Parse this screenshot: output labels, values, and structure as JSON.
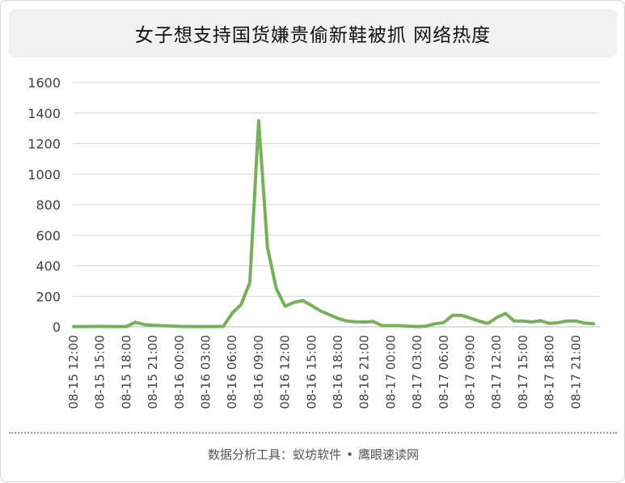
{
  "title": "女子想支持国货嫌贵偷新鞋被抓  网络热度",
  "footer": {
    "prefix": "数据分析工具：",
    "tool1": "蚁坊软件",
    "separator": "•",
    "tool2": "鹰眼速读网"
  },
  "chart_data": {
    "type": "line",
    "title": "女子想支持国货嫌贵偷新鞋被抓  网络热度",
    "xlabel": "",
    "ylabel": "",
    "ylim": [
      0,
      1600
    ],
    "yticks": [
      0,
      200,
      400,
      600,
      800,
      1000,
      1200,
      1400,
      1600
    ],
    "grid": true,
    "legend": "none",
    "line_color": "#77b05a",
    "x_tick_labels": [
      "08-15 12:00",
      "08-15 15:00",
      "08-15 18:00",
      "08-15 21:00",
      "08-16 00:00",
      "08-16 03:00",
      "08-16 06:00",
      "08-16 09:00",
      "08-16 12:00",
      "08-16 15:00",
      "08-16 18:00",
      "08-16 21:00",
      "08-17 00:00",
      "08-17 03:00",
      "08-17 06:00",
      "08-17 09:00",
      "08-17 12:00",
      "08-17 15:00",
      "08-17 18:00",
      "08-17 21:00"
    ],
    "x": [
      "08-15 12:00",
      "08-15 13:00",
      "08-15 14:00",
      "08-15 15:00",
      "08-15 16:00",
      "08-15 17:00",
      "08-15 18:00",
      "08-15 19:00",
      "08-15 20:00",
      "08-15 21:00",
      "08-15 22:00",
      "08-15 23:00",
      "08-16 00:00",
      "08-16 01:00",
      "08-16 02:00",
      "08-16 03:00",
      "08-16 04:00",
      "08-16 05:00",
      "08-16 06:00",
      "08-16 07:00",
      "08-16 08:00",
      "08-16 09:00",
      "08-16 10:00",
      "08-16 11:00",
      "08-16 12:00",
      "08-16 13:00",
      "08-16 14:00",
      "08-16 15:00",
      "08-16 16:00",
      "08-16 17:00",
      "08-16 18:00",
      "08-16 19:00",
      "08-16 20:00",
      "08-16 21:00",
      "08-16 22:00",
      "08-16 23:00",
      "08-17 00:00",
      "08-17 01:00",
      "08-17 02:00",
      "08-17 03:00",
      "08-17 04:00",
      "08-17 05:00",
      "08-17 06:00",
      "08-17 07:00",
      "08-17 08:00",
      "08-17 09:00",
      "08-17 10:00",
      "08-17 11:00",
      "08-17 12:00",
      "08-17 13:00",
      "08-17 14:00",
      "08-17 15:00",
      "08-17 16:00",
      "08-17 17:00",
      "08-17 18:00",
      "08-17 19:00",
      "08-17 20:00",
      "08-17 21:00",
      "08-17 22:00",
      "08-17 23:00"
    ],
    "values": [
      2,
      2,
      2,
      3,
      2,
      2,
      2,
      30,
      15,
      10,
      8,
      6,
      3,
      2,
      2,
      2,
      2,
      3,
      90,
      145,
      290,
      1350,
      520,
      250,
      135,
      160,
      172,
      140,
      105,
      80,
      55,
      38,
      33,
      32,
      35,
      8,
      8,
      8,
      4,
      2,
      5,
      20,
      28,
      75,
      75,
      58,
      38,
      22,
      60,
      88,
      38,
      38,
      32,
      40,
      22,
      28,
      38,
      38,
      25,
      20
    ]
  }
}
